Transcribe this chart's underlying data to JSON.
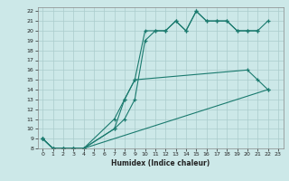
{
  "xlabel": "Humidex (Indice chaleur)",
  "bg_color": "#cce8e8",
  "grid_color": "#aacccc",
  "line_color": "#1a7a6e",
  "xlim": [
    -0.5,
    23.5
  ],
  "ylim": [
    8,
    22.4
  ],
  "xticks": [
    0,
    1,
    2,
    3,
    4,
    5,
    6,
    7,
    8,
    9,
    10,
    11,
    12,
    13,
    14,
    15,
    16,
    17,
    18,
    19,
    20,
    21,
    22,
    23
  ],
  "yticks": [
    8,
    9,
    10,
    11,
    12,
    13,
    14,
    15,
    16,
    17,
    18,
    19,
    20,
    21,
    22
  ],
  "series": [
    {
      "x": [
        0,
        1,
        2,
        3,
        4,
        7,
        8,
        9,
        10,
        11,
        12,
        13,
        14,
        15,
        16,
        17,
        18,
        19,
        20,
        21
      ],
      "y": [
        9,
        8,
        8,
        8,
        8,
        11,
        13,
        15,
        20,
        20,
        20,
        21,
        20,
        22,
        21,
        21,
        21,
        20,
        20,
        20
      ]
    },
    {
      "x": [
        0,
        1,
        2,
        3,
        4,
        7,
        8,
        9,
        10,
        11,
        12,
        13,
        14,
        15,
        16,
        17,
        18,
        19,
        20,
        21,
        22
      ],
      "y": [
        9,
        8,
        8,
        8,
        8,
        10,
        11,
        13,
        19,
        20,
        20,
        21,
        20,
        22,
        21,
        21,
        21,
        20,
        20,
        20,
        21
      ]
    },
    {
      "x": [
        0,
        1,
        2,
        3,
        4,
        22
      ],
      "y": [
        9,
        8,
        8,
        8,
        8,
        14
      ]
    },
    {
      "x": [
        0,
        1,
        2,
        3,
        4,
        7,
        8,
        9,
        20,
        21,
        22
      ],
      "y": [
        9,
        8,
        8,
        8,
        8,
        10,
        13,
        15,
        16,
        15,
        14
      ]
    }
  ]
}
